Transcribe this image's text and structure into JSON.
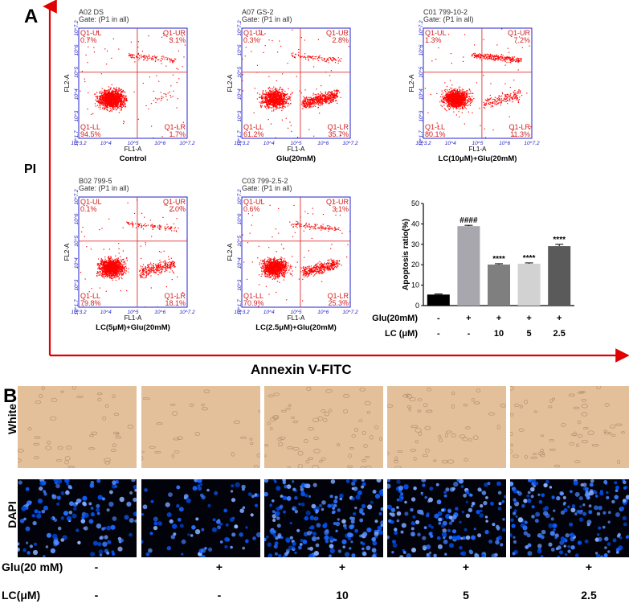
{
  "panel_a_label": "A",
  "panel_b_label": "B",
  "y_axis_label": "PI",
  "x_axis_label": "Annexin V-FITC",
  "colors": {
    "dots": "#ff0000",
    "plot_frame": "#2222cc",
    "gate_line": "#e03030",
    "red_axis": "#e00000"
  },
  "flow_plots": [
    {
      "title": "A02 DS",
      "gate": "Gate: (P1 in all)",
      "caption": "Control",
      "q_ul": "Q1-UL",
      "q_ur": "Q1-UR",
      "q_ll": "Q1-LL",
      "q_lr": "Q1-LR",
      "v_ul": "0.7%",
      "v_ur": "3.1%",
      "v_ll": "94.5%",
      "v_lr": "1.7%",
      "fl1": "FL1-A",
      "fl2": "FL2-A"
    },
    {
      "title": "A07 GS-2",
      "gate": "Gate: (P1 in all)",
      "caption": "Glu(20mM)",
      "q_ul": "Q1-UL",
      "q_ur": "Q1-UR",
      "q_ll": "Q1-LL",
      "q_lr": "Q1-LR",
      "v_ul": "0.3%",
      "v_ur": "2.8%",
      "v_ll": "61.2%",
      "v_lr": "35.7%",
      "fl1": "FL1-A",
      "fl2": "FL2-A"
    },
    {
      "title": "C01 799-10-2",
      "gate": "Gate: (P1 in all)",
      "caption": "LC(10μM)+Glu(20mM)",
      "q_ul": "Q1-UL",
      "q_ur": "Q1-UR",
      "q_ll": "Q1-LL",
      "q_lr": "Q1-LR",
      "v_ul": "1.3%",
      "v_ur": "7.2%",
      "v_ll": "80.1%",
      "v_lr": "11.3%",
      "fl1": "FL1-A",
      "fl2": "FL2-A"
    },
    {
      "title": "B02 799-5",
      "gate": "Gate: (P1 in all)",
      "caption": "LC(5μM)+Glu(20mM)",
      "q_ul": "Q1-UL",
      "q_ur": "Q1-UR",
      "q_ll": "Q1-LL",
      "q_lr": "Q1-LR",
      "v_ul": "0.1%",
      "v_ur": "2.0%",
      "v_ll": "79.8%",
      "v_lr": "18.1%",
      "fl1": "FL1-A",
      "fl2": "FL2-A"
    },
    {
      "title": "C03 799-2.5-2",
      "gate": "Gate: (P1 in all)",
      "caption": "LC(2.5μM)+Glu(20mM)",
      "q_ul": "Q1-UL",
      "q_ur": "Q1-UR",
      "q_ll": "Q1-LL",
      "q_lr": "Q1-LR",
      "v_ul": "0.6%",
      "v_ur": "3.1%",
      "v_ll": "70.9%",
      "v_lr": "25.3%",
      "fl1": "FL1-A",
      "fl2": "FL2-A"
    }
  ],
  "flow_ticks": {
    "x": [
      "10^3.2",
      "10^4",
      "10^5",
      "10^6",
      "10^7.2"
    ],
    "y": [
      "10^1.7",
      "10^3",
      "10^4",
      "10^5",
      "10^6",
      "10^7.2"
    ]
  },
  "chart_data": {
    "type": "bar",
    "ylabel": "Apoptosis ratio(%)",
    "ylim": [
      0,
      50
    ],
    "yticks": [
      "0",
      "10",
      "20",
      "30",
      "40",
      "50"
    ],
    "values": [
      5.4,
      38.9,
      20.1,
      20.5,
      29.1
    ],
    "errors": [
      0.3,
      0.4,
      0.4,
      0.4,
      0.9
    ],
    "annotations": [
      "",
      "####",
      "****",
      "****",
      "****"
    ],
    "bar_colors": [
      "#000000",
      "#a7a7ad",
      "#7f7f7f",
      "#d2d2d2",
      "#5a5a5a"
    ],
    "row_labels": [
      "Glu(20mM)",
      "LC (μM)"
    ],
    "glu_row": [
      "-",
      "+",
      "+",
      "+",
      "+"
    ],
    "lc_row": [
      "-",
      "-",
      "10",
      "5",
      "2.5"
    ]
  },
  "panel_b": {
    "row_labels": [
      "White",
      "DAPI"
    ],
    "glu_label": "Glu(20 mM)",
    "lc_label": "LC(μM)",
    "glu": [
      "-",
      "+",
      "+",
      "+",
      "+"
    ],
    "lc": [
      "-",
      "-",
      "10",
      "5",
      "2.5"
    ],
    "cell_density": [
      0.55,
      0.35,
      0.85,
      0.7,
      0.75
    ]
  }
}
